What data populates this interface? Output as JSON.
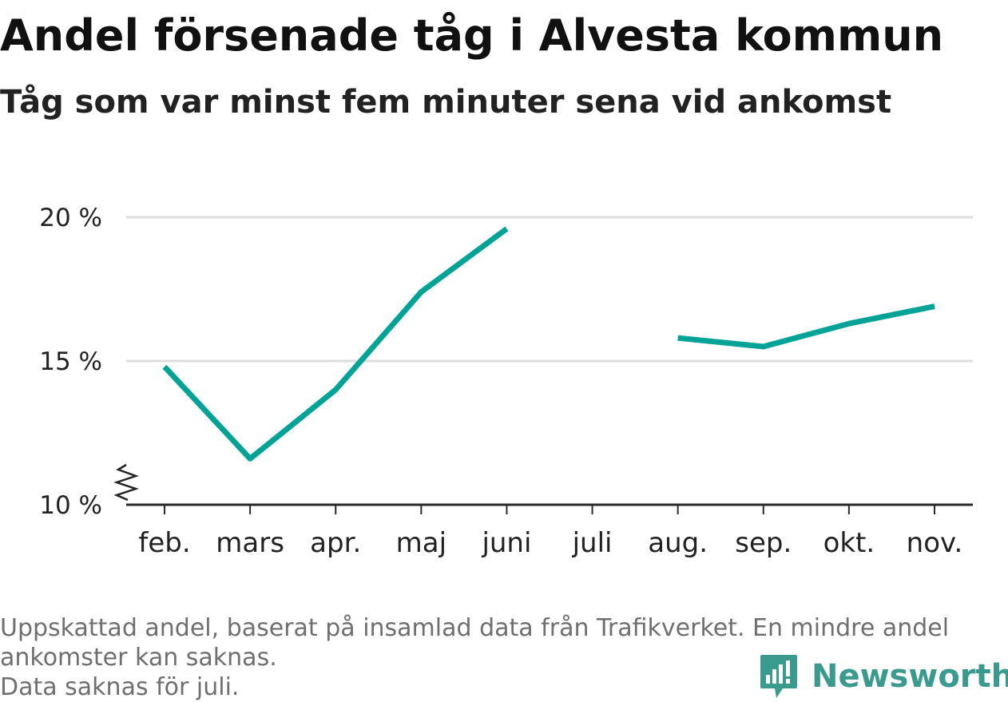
{
  "title": "Andel försenade tåg i Alvesta kommun",
  "subtitle": "Tåg som var minst fem minuter sena vid ankomst",
  "footnote": {
    "line1": "Uppskattad andel, baserat på insamlad data från Trafikverket. En mindre andel",
    "line2": "ankomster kan saknas.",
    "line3": "Data saknas för juli."
  },
  "brand": {
    "name": "Newsworthy",
    "icon": "bar-chart-speech-bubble-icon",
    "color": "#3a9a8e"
  },
  "chart_data": {
    "type": "line",
    "categories": [
      "feb.",
      "mars",
      "apr.",
      "maj",
      "juni",
      "juli",
      "aug.",
      "sep.",
      "okt.",
      "nov."
    ],
    "series": [
      {
        "values": [
          14.8,
          11.6,
          14.0,
          17.4,
          19.6,
          null,
          15.8,
          15.5,
          16.3,
          16.9
        ],
        "color": "#00a396"
      }
    ],
    "yticks": [
      10,
      15,
      20
    ],
    "ytick_labels": [
      "10 %",
      "15 %",
      "20 %"
    ],
    "ylim": [
      10,
      20
    ],
    "y_axis_break": true,
    "grid": true,
    "legend": "none",
    "xlabel": "",
    "ylabel": ""
  }
}
